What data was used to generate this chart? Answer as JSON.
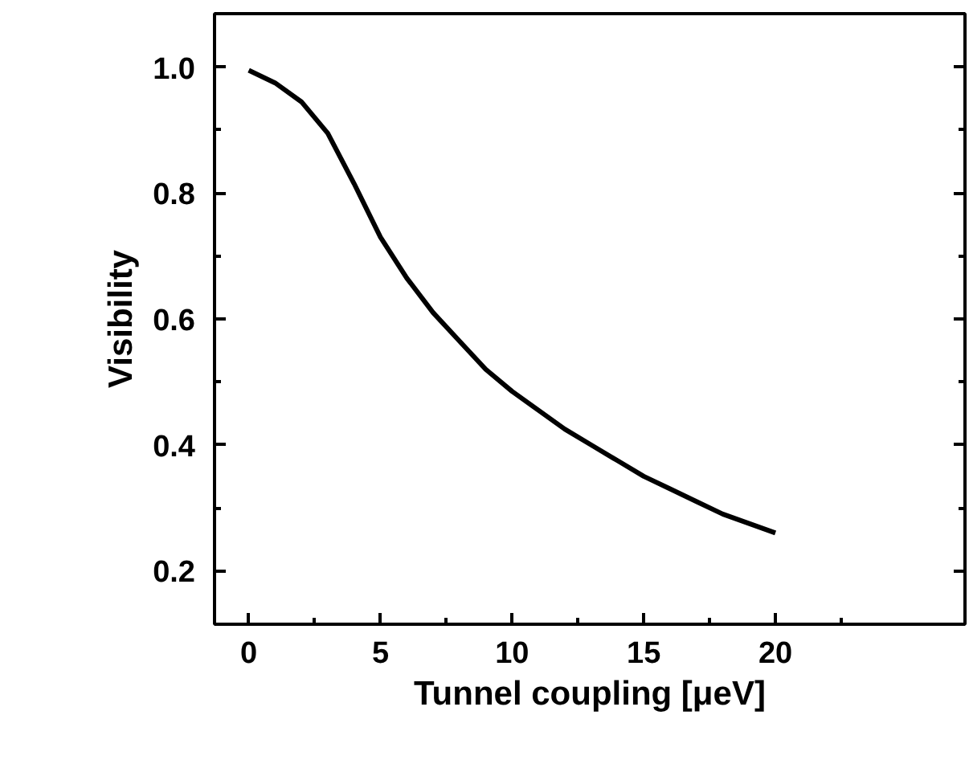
{
  "chart_data": {
    "type": "line",
    "xlabel": "Tunnel coupling [μeV]",
    "ylabel": "Visibility",
    "x": [
      0,
      1,
      2,
      3,
      4,
      5,
      6,
      7,
      8,
      9,
      10,
      11,
      12,
      13,
      14,
      15,
      16,
      17,
      18,
      19,
      20
    ],
    "series": [
      {
        "color": "#000000",
        "values": [
          0.995,
          0.975,
          0.945,
          0.895,
          0.815,
          0.73,
          0.665,
          0.61,
          0.565,
          0.52,
          0.485,
          0.455,
          0.425,
          0.4,
          0.375,
          0.35,
          0.33,
          0.31,
          0.29,
          0.275,
          0.26
        ]
      }
    ],
    "xlim": [
      -1.3,
      27.2
    ],
    "ylim": [
      0.115,
      1.085
    ],
    "xticks": [
      0,
      5,
      10,
      15,
      20
    ],
    "yticks": [
      {
        "value": 0.2,
        "label": "0.2"
      },
      {
        "value": 0.4,
        "label": "0.4"
      },
      {
        "value": 0.6,
        "label": "0.6"
      },
      {
        "value": 0.8,
        "label": "0.8"
      },
      {
        "value": 1.0,
        "label": "1.0"
      }
    ],
    "grid": false,
    "marker": "none",
    "line_style": "solid"
  }
}
